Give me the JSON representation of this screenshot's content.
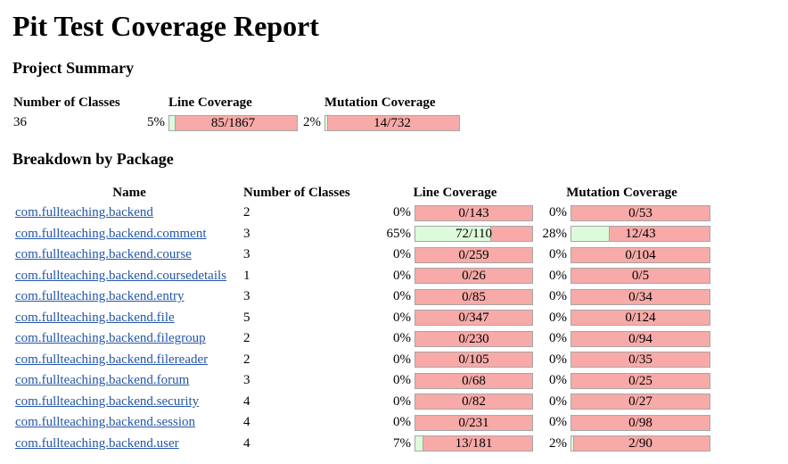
{
  "title": "Pit Test Coverage Report",
  "summary": {
    "heading": "Project Summary",
    "headers": {
      "classes": "Number of Classes",
      "line": "Line Coverage",
      "mutation": "Mutation Coverage"
    },
    "classes": "36",
    "line": {
      "pct": "5%",
      "label": "85/1867",
      "fraction": 0.05
    },
    "mutation": {
      "pct": "2%",
      "label": "14/732",
      "fraction": 0.02
    }
  },
  "breakdown": {
    "heading": "Breakdown by Package",
    "headers": {
      "name": "Name",
      "classes": "Number of Classes",
      "line": "Line Coverage",
      "mutation": "Mutation Coverage"
    },
    "packages": [
      {
        "name": "com.fullteaching.backend",
        "classes": "2",
        "line_pct": "0%",
        "line_label": "0/143",
        "line_fraction": 0,
        "mut_pct": "0%",
        "mut_label": "0/53",
        "mut_fraction": 0
      },
      {
        "name": "com.fullteaching.backend.comment",
        "classes": "3",
        "line_pct": "65%",
        "line_label": "72/110",
        "line_fraction": 0.65,
        "mut_pct": "28%",
        "mut_label": "12/43",
        "mut_fraction": 0.28
      },
      {
        "name": "com.fullteaching.backend.course",
        "classes": "3",
        "line_pct": "0%",
        "line_label": "0/259",
        "line_fraction": 0,
        "mut_pct": "0%",
        "mut_label": "0/104",
        "mut_fraction": 0
      },
      {
        "name": "com.fullteaching.backend.coursedetails",
        "classes": "1",
        "line_pct": "0%",
        "line_label": "0/26",
        "line_fraction": 0,
        "mut_pct": "0%",
        "mut_label": "0/5",
        "mut_fraction": 0
      },
      {
        "name": "com.fullteaching.backend.entry",
        "classes": "3",
        "line_pct": "0%",
        "line_label": "0/85",
        "line_fraction": 0,
        "mut_pct": "0%",
        "mut_label": "0/34",
        "mut_fraction": 0
      },
      {
        "name": "com.fullteaching.backend.file",
        "classes": "5",
        "line_pct": "0%",
        "line_label": "0/347",
        "line_fraction": 0,
        "mut_pct": "0%",
        "mut_label": "0/124",
        "mut_fraction": 0
      },
      {
        "name": "com.fullteaching.backend.filegroup",
        "classes": "2",
        "line_pct": "0%",
        "line_label": "0/230",
        "line_fraction": 0,
        "mut_pct": "0%",
        "mut_label": "0/94",
        "mut_fraction": 0
      },
      {
        "name": "com.fullteaching.backend.filereader",
        "classes": "2",
        "line_pct": "0%",
        "line_label": "0/105",
        "line_fraction": 0,
        "mut_pct": "0%",
        "mut_label": "0/35",
        "mut_fraction": 0
      },
      {
        "name": "com.fullteaching.backend.forum",
        "classes": "3",
        "line_pct": "0%",
        "line_label": "0/68",
        "line_fraction": 0,
        "mut_pct": "0%",
        "mut_label": "0/25",
        "mut_fraction": 0
      },
      {
        "name": "com.fullteaching.backend.security",
        "classes": "4",
        "line_pct": "0%",
        "line_label": "0/82",
        "line_fraction": 0,
        "mut_pct": "0%",
        "mut_label": "0/27",
        "mut_fraction": 0
      },
      {
        "name": "com.fullteaching.backend.session",
        "classes": "4",
        "line_pct": "0%",
        "line_label": "0/231",
        "line_fraction": 0,
        "mut_pct": "0%",
        "mut_label": "0/98",
        "mut_fraction": 0
      },
      {
        "name": "com.fullteaching.backend.user",
        "classes": "4",
        "line_pct": "7%",
        "line_label": "13/181",
        "line_fraction": 0.07,
        "mut_pct": "2%",
        "mut_label": "2/90",
        "mut_fraction": 0.02
      }
    ]
  },
  "colors": {
    "covered": "#ddfadb",
    "uncovered": "#f7aaa8",
    "link": "#2456a8"
  }
}
